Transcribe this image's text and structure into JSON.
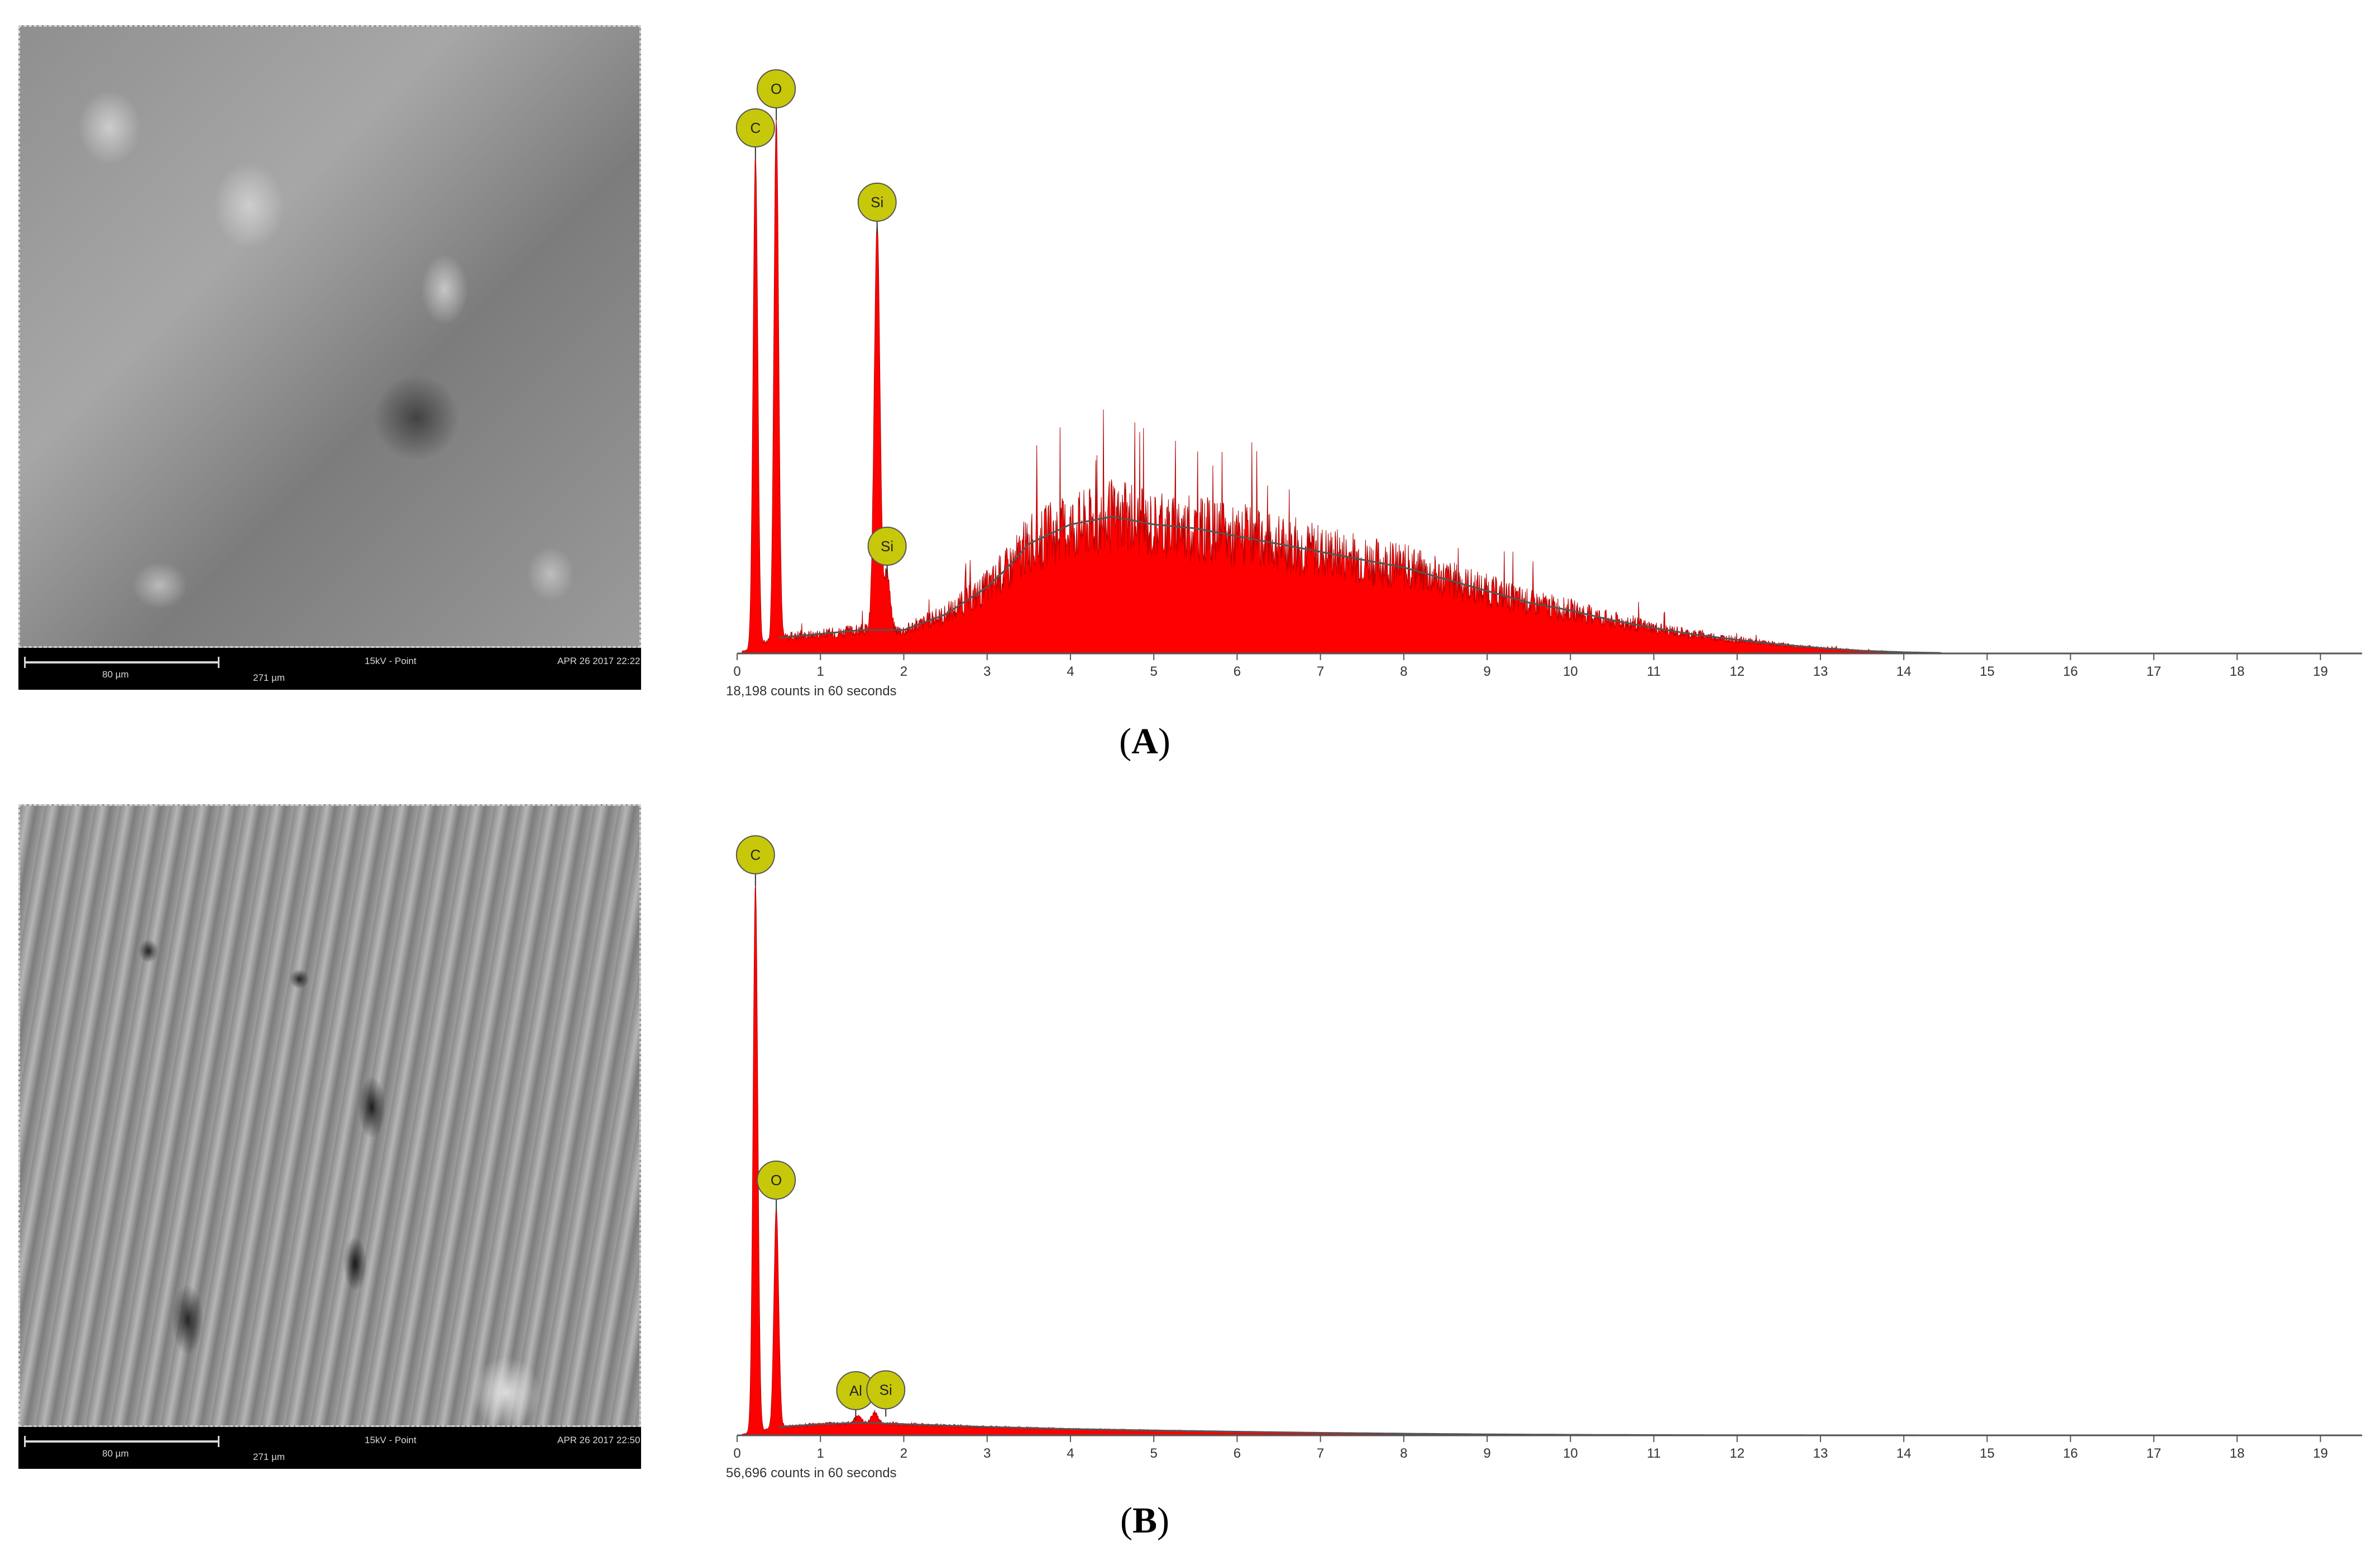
{
  "panels": [
    {
      "id": "A",
      "label_open": "(",
      "label_letter": "A",
      "label_close": ")",
      "sem": {
        "scale_bar": "80 µm",
        "hfw": "271 µm",
        "mode": "15kV - Point",
        "timestamp": "APR 26 2017 22:22"
      },
      "chart_data": {
        "type": "area",
        "xlim": [
          0,
          19.5
        ],
        "ylim": [
          0,
          15000
        ],
        "x_ticks": [
          0,
          1,
          2,
          3,
          4,
          5,
          6,
          7,
          8,
          9,
          10,
          11,
          12,
          13,
          14,
          15,
          16,
          17,
          18,
          19
        ],
        "counts_caption": "18,198 counts in 60 seconds",
        "fill_color": "#ff0000",
        "marker_color": "#c8c80a",
        "peaks": [
          {
            "element": "C",
            "x": 0.22,
            "y": 12700
          },
          {
            "element": "O",
            "x": 0.47,
            "y": 13700
          },
          {
            "element": "Si",
            "x": 1.68,
            "y": 10800
          },
          {
            "element": "Si",
            "x": 1.8,
            "y": 2000
          }
        ],
        "background": {
          "x": [
            0.0,
            0.5,
            1.0,
            1.5,
            2.0,
            2.5,
            3.0,
            3.2,
            3.5,
            4.0,
            4.5,
            5.0,
            5.5,
            6.0,
            6.5,
            7.0,
            7.5,
            8.0,
            8.5,
            9.0,
            9.5,
            10.0,
            10.5,
            11.0,
            11.5,
            12.0,
            12.5,
            13.0,
            13.5,
            14.0,
            14.5,
            15.0,
            19.5
          ],
          "y": [
            0,
            400,
            500,
            600,
            600,
            1000,
            1700,
            2100,
            2800,
            3300,
            3500,
            3300,
            3200,
            3000,
            2800,
            2600,
            2400,
            2200,
            1900,
            1600,
            1300,
            1100,
            850,
            650,
            480,
            350,
            230,
            140,
            70,
            30,
            10,
            0,
            0
          ]
        }
      }
    },
    {
      "id": "B",
      "label_open": "(",
      "label_letter": "B",
      "label_close": ")",
      "sem": {
        "scale_bar": "80 µm",
        "hfw": "271 µm",
        "mode": "15kV - Point",
        "timestamp": "APR 26 2017 22:50"
      },
      "chart_data": {
        "type": "area",
        "xlim": [
          0,
          19.5
        ],
        "ylim": [
          0,
          42000
        ],
        "x_ticks": [
          0,
          1,
          2,
          3,
          4,
          5,
          6,
          7,
          8,
          9,
          10,
          11,
          12,
          13,
          14,
          15,
          16,
          17,
          18,
          19
        ],
        "counts_caption": "56,696 counts in 60 seconds",
        "fill_color": "#ff0000",
        "marker_color": "#c8c80a",
        "peaks": [
          {
            "element": "C",
            "x": 0.22,
            "y": 39500
          },
          {
            "element": "O",
            "x": 0.47,
            "y": 16200
          },
          {
            "element": "Al",
            "x": 1.45,
            "y": 1200
          },
          {
            "element": "Si",
            "x": 1.65,
            "y": 1500
          }
        ],
        "background": {
          "x": [
            0.0,
            0.5,
            1.0,
            1.5,
            2.0,
            2.5,
            3.0,
            4.0,
            5.0,
            6.0,
            7.0,
            8.0,
            9.0,
            10.0,
            11.0,
            12.0,
            13.0,
            15.0,
            19.5
          ],
          "y": [
            0,
            600,
            800,
            900,
            800,
            700,
            600,
            450,
            350,
            260,
            180,
            120,
            70,
            40,
            20,
            10,
            5,
            0,
            0
          ]
        }
      }
    }
  ]
}
